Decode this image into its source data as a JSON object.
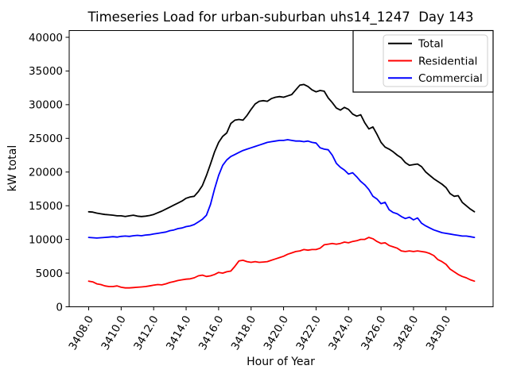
{
  "figure": {
    "background": "#ffffff"
  },
  "chart_data": {
    "type": "line",
    "title": "Timeseries Load for urban-suburban uhs14_1247  Day 143",
    "xlabel": "Hour of Year",
    "ylabel": "kW total",
    "xlim": [
      3406.8,
      3432.9
    ],
    "ylim": [
      0,
      41000
    ],
    "grid": false,
    "legend_position": "upper right",
    "xticks": [
      3408,
      3410,
      3412,
      3414,
      3416,
      3418,
      3420,
      3422,
      3424,
      3426,
      3428,
      3430
    ],
    "xticklabels": [
      "3408.0",
      "3410.0",
      "3412.0",
      "3414.0",
      "3416.0",
      "3418.0",
      "3420.0",
      "3422.0",
      "3424.0",
      "3426.0",
      "3428.0",
      "3430.0"
    ],
    "yticks": [
      0,
      5000,
      10000,
      15000,
      20000,
      25000,
      30000,
      35000,
      40000
    ],
    "yticklabels": [
      "0",
      "5000",
      "10000",
      "15000",
      "20000",
      "25000",
      "30000",
      "35000",
      "40000"
    ],
    "x_start": 3408.0,
    "x_step": 0.25,
    "series": [
      {
        "name": "Total",
        "color": "#000000",
        "values": [
          14100,
          14050,
          13900,
          13800,
          13700,
          13650,
          13600,
          13500,
          13500,
          13400,
          13500,
          13600,
          13450,
          13400,
          13450,
          13550,
          13700,
          13950,
          14200,
          14500,
          14800,
          15100,
          15400,
          15700,
          16100,
          16300,
          16400,
          17100,
          18000,
          19500,
          21200,
          23000,
          24400,
          25300,
          25800,
          27200,
          27700,
          27800,
          27700,
          28400,
          29300,
          30100,
          30500,
          30600,
          30500,
          30900,
          31100,
          31200,
          31100,
          31300,
          31500,
          32200,
          32900,
          33000,
          32700,
          32200,
          31900,
          32100,
          32000,
          31000,
          30300,
          29500,
          29200,
          29600,
          29300,
          28600,
          28300,
          28500,
          27300,
          26400,
          26700,
          25600,
          24400,
          23700,
          23400,
          23000,
          22500,
          22100,
          21400,
          21000,
          21100,
          21200,
          20800,
          20000,
          19500,
          19000,
          18600,
          18200,
          17700,
          16800,
          16400,
          16500,
          15500,
          15000,
          14500,
          14100
        ]
      },
      {
        "name": "Residential",
        "color": "#ff0000",
        "values": [
          3800,
          3700,
          3400,
          3300,
          3100,
          3000,
          3000,
          3100,
          2900,
          2800,
          2800,
          2850,
          2900,
          2950,
          3000,
          3100,
          3200,
          3300,
          3250,
          3400,
          3600,
          3750,
          3900,
          4000,
          4100,
          4150,
          4300,
          4600,
          4700,
          4500,
          4600,
          4800,
          5100,
          5000,
          5200,
          5300,
          6000,
          6800,
          6900,
          6700,
          6600,
          6700,
          6600,
          6650,
          6700,
          6900,
          7100,
          7300,
          7500,
          7800,
          8000,
          8200,
          8300,
          8500,
          8400,
          8500,
          8500,
          8700,
          9200,
          9300,
          9400,
          9300,
          9400,
          9600,
          9500,
          9700,
          9800,
          10000,
          10000,
          10300,
          10100,
          9700,
          9400,
          9500,
          9100,
          8900,
          8700,
          8300,
          8200,
          8300,
          8200,
          8300,
          8200,
          8100,
          7900,
          7600,
          7000,
          6700,
          6300,
          5600,
          5200,
          4800,
          4500,
          4300,
          4000,
          3800
        ]
      },
      {
        "name": "Commercial",
        "color": "#0000ff",
        "values": [
          10300,
          10250,
          10200,
          10250,
          10300,
          10350,
          10400,
          10350,
          10450,
          10500,
          10450,
          10550,
          10600,
          10550,
          10650,
          10700,
          10800,
          10900,
          11000,
          11100,
          11300,
          11400,
          11600,
          11700,
          11900,
          12000,
          12200,
          12600,
          13000,
          13600,
          15200,
          17500,
          19500,
          21000,
          21800,
          22300,
          22600,
          22900,
          23200,
          23400,
          23600,
          23800,
          24000,
          24200,
          24400,
          24500,
          24600,
          24700,
          24700,
          24800,
          24700,
          24600,
          24600,
          24500,
          24600,
          24400,
          24300,
          23600,
          23400,
          23300,
          22500,
          21300,
          20700,
          20300,
          19700,
          19900,
          19300,
          18600,
          18100,
          17400,
          16400,
          16000,
          15300,
          15500,
          14400,
          14000,
          13800,
          13400,
          13100,
          13300,
          12900,
          13200,
          12400,
          12000,
          11700,
          11400,
          11200,
          11000,
          10900,
          10800,
          10700,
          10600,
          10500,
          10500,
          10400,
          10300
        ]
      }
    ]
  }
}
